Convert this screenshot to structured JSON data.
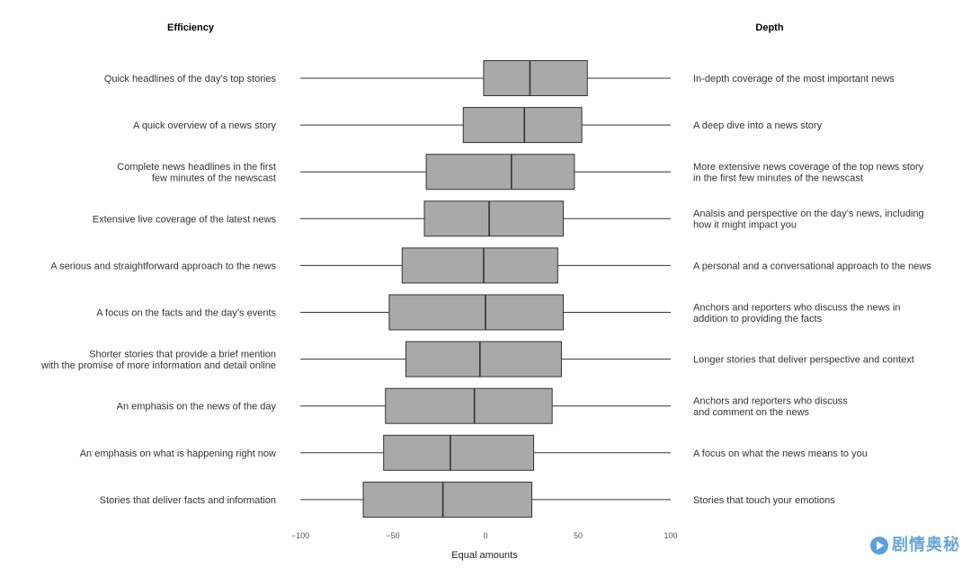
{
  "chart_data": {
    "type": "boxplot",
    "left_header": "Efficiency",
    "right_header": "Depth",
    "xlabel": "Equal amounts",
    "xlim": [
      -100,
      100
    ],
    "xticks": [
      -100,
      -50,
      0,
      50,
      100
    ],
    "xtick_labels": [
      "−100",
      "−50",
      "0",
      "50",
      "100"
    ],
    "rows": [
      {
        "left": [
          "Quick headlines of the day’s top stories"
        ],
        "right": [
          "In-depth coverage of the most important news"
        ],
        "whisker_low": -100,
        "q1": -1,
        "median": 24,
        "q3": 55,
        "whisker_high": 100
      },
      {
        "left": [
          "A quick overview of a news story"
        ],
        "right": [
          "A deep dive into a news story"
        ],
        "whisker_low": -100,
        "q1": -12,
        "median": 21,
        "q3": 52,
        "whisker_high": 100
      },
      {
        "left": [
          "Complete news headlines in the first",
          "few minutes of the newscast"
        ],
        "right": [
          "More extensive news coverage of the top news story",
          "in the first few minutes of the newscast"
        ],
        "whisker_low": -100,
        "q1": -32,
        "median": 14,
        "q3": 48,
        "whisker_high": 100
      },
      {
        "left": [
          "Extensive live coverage of the latest news"
        ],
        "right": [
          "Analsis and perspective on the day’s news, including",
          "how it might impact you"
        ],
        "whisker_low": -100,
        "q1": -33,
        "median": 2,
        "q3": 42,
        "whisker_high": 100
      },
      {
        "left": [
          "A serious and straightforward approach to the news"
        ],
        "right": [
          "A personal and a conversational approach to the news"
        ],
        "whisker_low": -100,
        "q1": -45,
        "median": -1,
        "q3": 39,
        "whisker_high": 100
      },
      {
        "left": [
          "A focus on the facts and the day’s events"
        ],
        "right": [
          "Anchors and reporters who discuss the news in",
          "addition to providing the facts"
        ],
        "whisker_low": -100,
        "q1": -52,
        "median": 0,
        "q3": 42,
        "whisker_high": 100
      },
      {
        "left": [
          "Shorter stories that provide a brief mention",
          "with the promise of more information and detail online"
        ],
        "right": [
          "Longer stories that deliver perspective and context"
        ],
        "whisker_low": -100,
        "q1": -43,
        "median": -3,
        "q3": 41,
        "whisker_high": 100
      },
      {
        "left": [
          "An emphasis on the news of the day"
        ],
        "right": [
          "Anchors and reporters who discuss",
          "and comment on the news"
        ],
        "whisker_low": -100,
        "q1": -54,
        "median": -6,
        "q3": 36,
        "whisker_high": 100
      },
      {
        "left": [
          "An emphasis on what is happening right now"
        ],
        "right": [
          "A focus on what the news means to you"
        ],
        "whisker_low": -100,
        "q1": -55,
        "median": -19,
        "q3": 26,
        "whisker_high": 100
      },
      {
        "left": [
          "Stories that deliver facts and information"
        ],
        "right": [
          "Stories that touch your emotions"
        ],
        "whisker_low": -100,
        "q1": -66,
        "median": -23,
        "q3": 25,
        "whisker_high": 100
      }
    ],
    "box_color": "#a8a9a8",
    "line_color": "#333333"
  },
  "watermark": "剧情奥秘"
}
